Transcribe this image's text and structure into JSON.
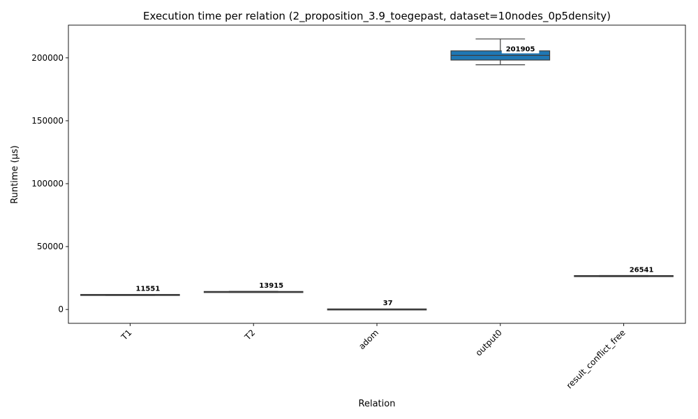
{
  "chart_data": {
    "type": "box",
    "title": "Execution time per relation (2_proposition_3.9_toegepast, dataset=10nodes_0p5density)",
    "xlabel": "Relation",
    "ylabel": "Runtime (µs)",
    "ylim": [
      -11000,
      226000
    ],
    "yticks": [
      0,
      50000,
      100000,
      150000,
      200000
    ],
    "ytick_labels": [
      "0",
      "50000",
      "100000",
      "150000",
      "200000"
    ],
    "categories": [
      "T1",
      "T2",
      "adom",
      "output0",
      "result_conflict_free"
    ],
    "box_color": "#1f77b4",
    "line_color": "#3d3d3d",
    "boxes": [
      {
        "category": "T1",
        "min": 11200,
        "q1": 11300,
        "median": 11551,
        "q3": 11750,
        "max": 11900,
        "annotation": "11551"
      },
      {
        "category": "T2",
        "min": 13500,
        "q1": 13600,
        "median": 13915,
        "q3": 14200,
        "max": 14400,
        "annotation": "13915"
      },
      {
        "category": "adom",
        "min": 30,
        "q1": 33,
        "median": 37,
        "q3": 42,
        "max": 48,
        "annotation": "37"
      },
      {
        "category": "output0",
        "min": 194500,
        "q1": 198500,
        "median": 201905,
        "q3": 205800,
        "max": 215000,
        "annotation": "201905"
      },
      {
        "category": "result_conflict_free",
        "min": 26200,
        "q1": 26300,
        "median": 26541,
        "q3": 26800,
        "max": 27000,
        "annotation": "26541"
      }
    ]
  }
}
